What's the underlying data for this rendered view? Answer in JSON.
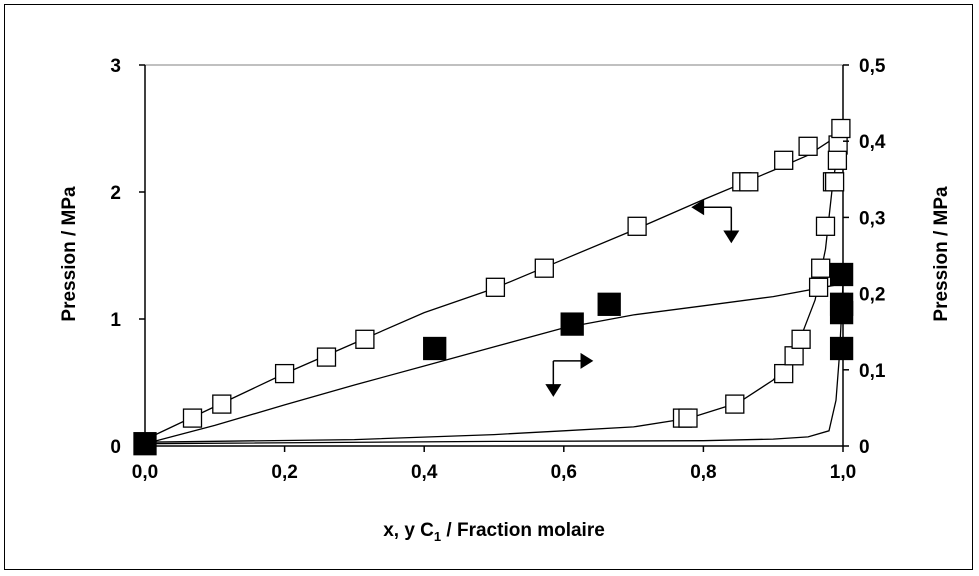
{
  "chart_data": {
    "type": "scatter",
    "xlabel": {
      "prefix": "x, y C",
      "subscript": "1",
      "suffix": " / Fraction molaire"
    },
    "ylabel_left": "Pression / MPa",
    "ylabel_right": "Pression / MPa",
    "xlim": [
      0,
      1
    ],
    "ylim_left": [
      0,
      3
    ],
    "ylim_right": [
      0,
      0.5
    ],
    "x_ticks": [
      "0,0",
      "0,2",
      "0,4",
      "0,6",
      "0,8",
      "1,0"
    ],
    "y_left_ticks": [
      "0",
      "1",
      "2",
      "3"
    ],
    "y_right_ticks": [
      "0",
      "0,1",
      "0,2",
      "0,3",
      "0,4",
      "0,5"
    ],
    "grid": false,
    "legend": "none",
    "series": [
      {
        "axis": "left",
        "marker": "open-square",
        "points": [
          [
            0.0,
            0.03
          ],
          [
            0.068,
            0.22
          ],
          [
            0.11,
            0.33
          ],
          [
            0.2,
            0.57
          ],
          [
            0.26,
            0.7
          ],
          [
            0.315,
            0.84
          ],
          [
            0.502,
            1.25
          ],
          [
            0.572,
            1.4
          ],
          [
            0.705,
            1.73
          ],
          [
            0.855,
            2.08
          ],
          [
            0.865,
            2.08
          ],
          [
            0.915,
            2.25
          ],
          [
            0.95,
            2.36
          ],
          [
            0.993,
            2.37
          ],
          [
            0.997,
            2.5
          ],
          [
            0.77,
            0.22
          ],
          [
            0.778,
            0.22
          ],
          [
            0.845,
            0.33
          ],
          [
            0.915,
            0.57
          ],
          [
            0.93,
            0.71
          ],
          [
            0.94,
            0.84
          ],
          [
            0.965,
            1.25
          ],
          [
            0.968,
            1.4
          ],
          [
            0.975,
            1.73
          ],
          [
            0.985,
            2.08
          ],
          [
            0.988,
            2.08
          ],
          [
            0.992,
            2.25
          ]
        ]
      },
      {
        "axis": "right",
        "marker": "filled-square",
        "points": [
          [
            0.0,
            0.003
          ],
          [
            0.415,
            0.128
          ],
          [
            0.612,
            0.16
          ],
          [
            0.665,
            0.186
          ],
          [
            0.998,
            0.128
          ],
          [
            0.998,
            0.175
          ],
          [
            0.998,
            0.186
          ],
          [
            0.998,
            0.225
          ]
        ]
      }
    ],
    "curves": [
      {
        "axis": "left",
        "points": [
          [
            0,
            0.05
          ],
          [
            0.1,
            0.31
          ],
          [
            0.2,
            0.57
          ],
          [
            0.3,
            0.81
          ],
          [
            0.4,
            1.05
          ],
          [
            0.5,
            1.24
          ],
          [
            0.6,
            1.47
          ],
          [
            0.7,
            1.7
          ],
          [
            0.8,
            1.94
          ],
          [
            0.9,
            2.17
          ],
          [
            0.95,
            2.29
          ],
          [
            1.0,
            2.47
          ]
        ]
      },
      {
        "axis": "left",
        "points": [
          [
            0,
            0.03
          ],
          [
            0.3,
            0.05
          ],
          [
            0.5,
            0.09
          ],
          [
            0.6,
            0.12
          ],
          [
            0.7,
            0.15
          ],
          [
            0.78,
            0.22
          ],
          [
            0.85,
            0.34
          ],
          [
            0.9,
            0.52
          ],
          [
            0.93,
            0.72
          ],
          [
            0.96,
            1.15
          ],
          [
            0.975,
            1.55
          ],
          [
            0.985,
            2.05
          ],
          [
            0.992,
            2.3
          ],
          [
            1.0,
            2.47
          ]
        ]
      },
      {
        "axis": "right",
        "points": [
          [
            0,
            0.003
          ],
          [
            0.1,
            0.027
          ],
          [
            0.2,
            0.054
          ],
          [
            0.3,
            0.08
          ],
          [
            0.4,
            0.105
          ],
          [
            0.5,
            0.13
          ],
          [
            0.6,
            0.155
          ],
          [
            0.7,
            0.172
          ],
          [
            0.8,
            0.184
          ],
          [
            0.9,
            0.196
          ],
          [
            1.0,
            0.213
          ]
        ]
      },
      {
        "axis": "right",
        "points": [
          [
            0,
            0.003
          ],
          [
            0.5,
            0.006
          ],
          [
            0.8,
            0.007
          ],
          [
            0.9,
            0.009
          ],
          [
            0.95,
            0.012
          ],
          [
            0.98,
            0.02
          ],
          [
            0.99,
            0.06
          ],
          [
            0.995,
            0.12
          ],
          [
            1.0,
            0.213
          ]
        ]
      }
    ],
    "annotations": [
      {
        "kind": "arrow-left-down",
        "x": 0.84,
        "y_left": 1.88
      },
      {
        "kind": "arrow-down-right",
        "x": 0.585,
        "y_left": 0.67
      }
    ]
  }
}
